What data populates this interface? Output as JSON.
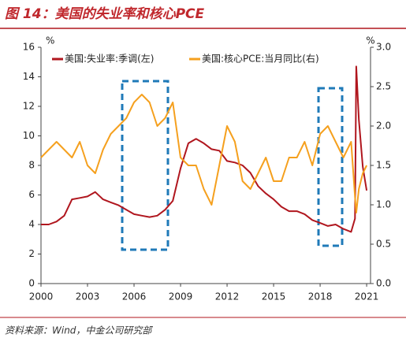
{
  "chart_data": {
    "type": "line",
    "title": "图 14：美国的失业率和核心PCE",
    "source": "资料来源：Wind，中金公司研究部",
    "y_unit": "%",
    "y2_unit": "%",
    "x": [
      2000,
      2000.5,
      2001,
      2001.5,
      2002,
      2002.5,
      2003,
      2003.5,
      2004,
      2004.5,
      2005,
      2005.5,
      2006,
      2006.5,
      2007,
      2007.5,
      2008,
      2008.5,
      2009,
      2009.5,
      2010,
      2010.5,
      2011,
      2011.5,
      2012,
      2012.5,
      2013,
      2013.5,
      2014,
      2014.5,
      2015,
      2015.5,
      2016,
      2016.5,
      2017,
      2017.5,
      2018,
      2018.5,
      2019,
      2019.5,
      2020,
      2020.25,
      2020.33,
      2020.5,
      2020.75,
      2021
    ],
    "xlim": [
      2000,
      2021.25
    ],
    "xticks": [
      2000,
      2003,
      2006,
      2009,
      2012,
      2015,
      2018,
      2021
    ],
    "ylim": [
      0,
      16
    ],
    "yticks": [
      0,
      2,
      4,
      6,
      8,
      10,
      12,
      14,
      16
    ],
    "y2lim": [
      0,
      3
    ],
    "y2ticks": [
      {
        "value": 0,
        "label": "0.0"
      },
      0.5,
      {
        "value": 1,
        "label": "1.0"
      },
      1.5,
      {
        "value": 2,
        "label": "2.0"
      },
      2.5,
      {
        "value": 3,
        "label": "3.0"
      }
    ],
    "series": [
      {
        "name": "美国:失业率:季调(左)",
        "color": "#b0161e",
        "axis": "y",
        "values": [
          4.0,
          4.0,
          4.2,
          4.6,
          5.7,
          5.8,
          5.9,
          6.2,
          5.7,
          5.5,
          5.3,
          5.0,
          4.7,
          4.6,
          4.5,
          4.6,
          5.0,
          5.6,
          7.8,
          9.5,
          9.8,
          9.5,
          9.1,
          9.0,
          8.3,
          8.2,
          8.0,
          7.5,
          6.6,
          6.1,
          5.7,
          5.2,
          4.9,
          4.9,
          4.7,
          4.3,
          4.1,
          3.9,
          4.0,
          3.7,
          3.5,
          4.4,
          14.7,
          11.1,
          7.9,
          6.3
        ]
      },
      {
        "name": "美国:核心PCE:当月同比(右)",
        "color": "#f5a01e",
        "axis": "y2",
        "values": [
          1.6,
          1.7,
          1.8,
          1.7,
          1.6,
          1.8,
          1.5,
          1.4,
          1.7,
          1.9,
          2.0,
          2.1,
          2.3,
          2.4,
          2.3,
          2.0,
          2.1,
          2.3,
          1.6,
          1.5,
          1.5,
          1.2,
          1.0,
          1.5,
          2.0,
          1.8,
          1.3,
          1.2,
          1.4,
          1.6,
          1.3,
          1.3,
          1.6,
          1.6,
          1.8,
          1.5,
          1.9,
          2.0,
          1.8,
          1.6,
          1.8,
          1.1,
          0.9,
          1.2,
          1.4,
          1.5
        ]
      }
    ]
  }
}
